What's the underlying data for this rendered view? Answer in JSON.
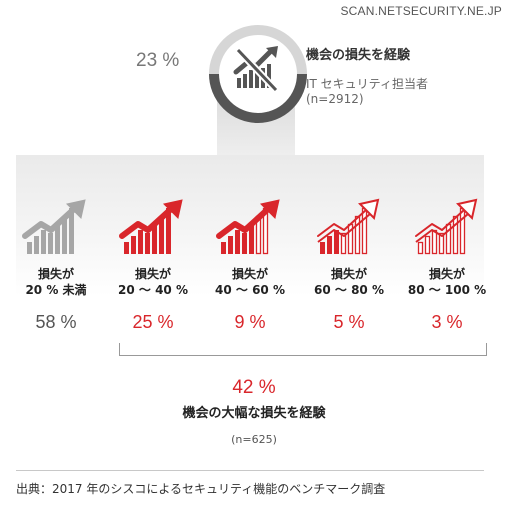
{
  "source_tag": "SCAN.NETSECURITY.NE.JP",
  "top": {
    "percent": "23 %",
    "title": "機会の損失を経験",
    "subtitle_line1": "IT セキュリティ担当者",
    "subtitle_line2": "(n=2912)"
  },
  "icons": {
    "main": "declining-chart-icon",
    "category": "rising-bar-arrow-icon"
  },
  "colors": {
    "red": "#d9262b",
    "gray": "#a6a6a6",
    "dark_gray": "#555555"
  },
  "categories": [
    {
      "line1": "損失が",
      "line2": "20 % 未満",
      "value": "58 %",
      "style": "gray"
    },
    {
      "line1": "損失が",
      "line2": "20 〜 40 %",
      "value": "25 %",
      "style": "red-full"
    },
    {
      "line1": "損失が",
      "line2": "40 〜 60 %",
      "value": "9 %",
      "style": "red-mostly"
    },
    {
      "line1": "損失が",
      "line2": "60 〜 80 %",
      "value": "5 %",
      "style": "red-half"
    },
    {
      "line1": "損失が",
      "line2": "80 〜 100 %",
      "value": "3 %",
      "style": "red-outline"
    }
  ],
  "aggregate": {
    "percent": "42 %",
    "title": "機会の大幅な損失を経験",
    "n": "(n=625)"
  },
  "footer": "出典：2017 年のシスコによるセキュリティ機能のベンチマーク調査",
  "chart_data": {
    "type": "bar",
    "categories": [
      "20 % 未満",
      "20 〜 40 %",
      "40 〜 60 %",
      "60 〜 80 %",
      "80 〜 100 %"
    ],
    "values": [
      58,
      25,
      9,
      5,
      3
    ],
    "unit": "%",
    "headline_percent": 23,
    "headline_n": 2912,
    "aggregate_percent": 42,
    "aggregate_n": 625
  }
}
